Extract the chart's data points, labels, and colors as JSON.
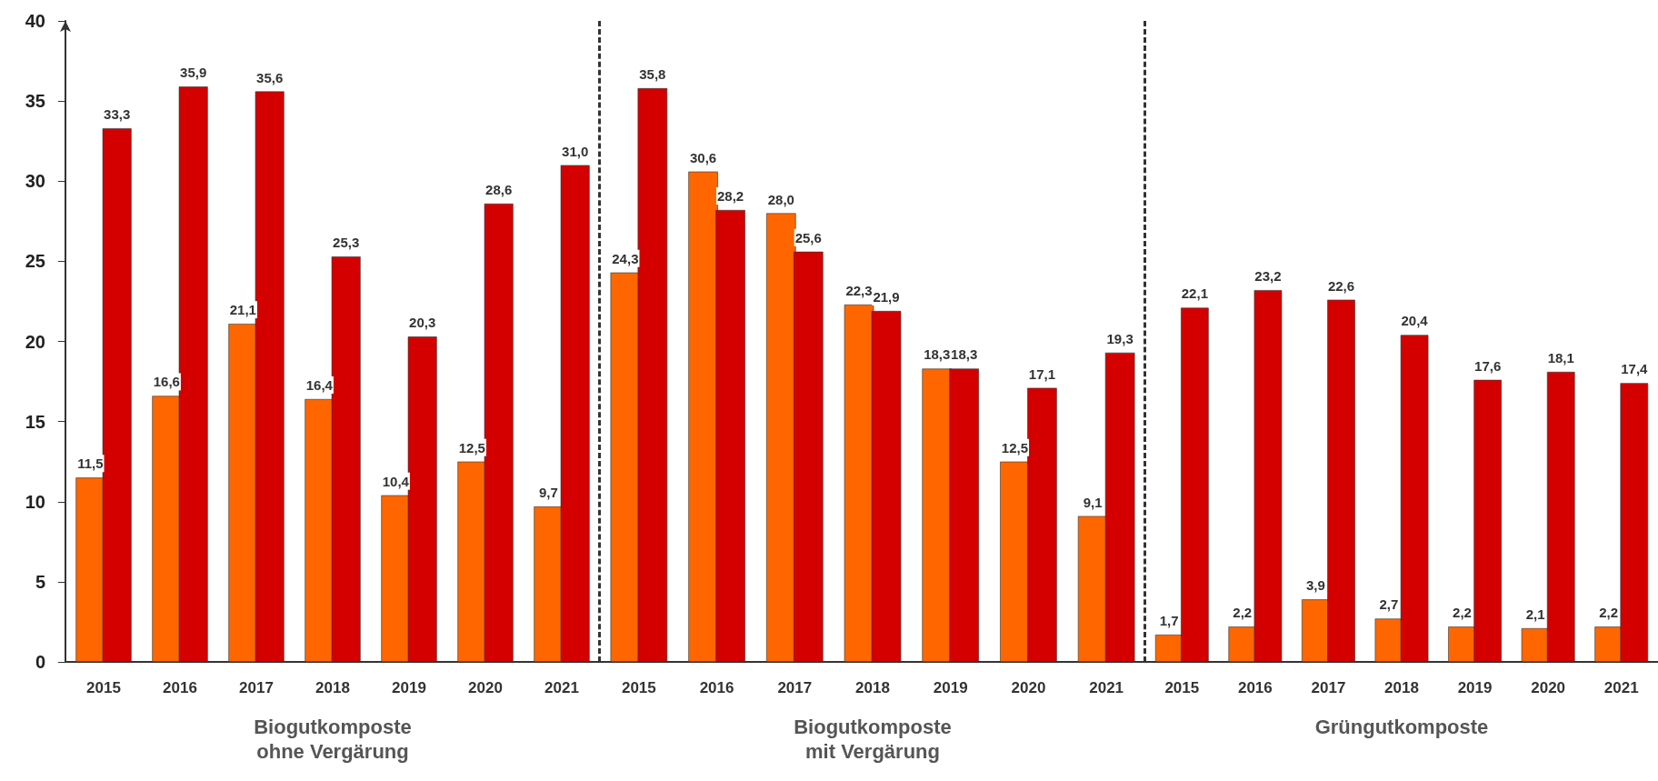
{
  "chart_data": [
    {
      "type": "bar",
      "categories": [
        "2015",
        "2016",
        "2017",
        "2018",
        "2019",
        "2020",
        "2021"
      ],
      "xlabel": "Biogutkomposte\nohne Vergärung",
      "ylim": [
        0,
        40
      ],
      "yticks": [
        0,
        5,
        10,
        15,
        20,
        25,
        30,
        35,
        40
      ],
      "series": [
        {
          "color": "#ff6600",
          "values": [
            11.5,
            16.6,
            21.1,
            16.4,
            10.4,
            12.5,
            9.7
          ],
          "value_labels": [
            "11,5",
            "16,6",
            "21,1",
            "16,4",
            "10,4",
            "12,5",
            "9,7"
          ]
        },
        {
          "color": "#d40000",
          "values": [
            33.3,
            35.9,
            35.6,
            25.3,
            20.3,
            28.6,
            31.0
          ],
          "value_labels": [
            "33,3",
            "35,9",
            "35,6",
            "25,3",
            "20,3",
            "28,6",
            "31,0"
          ]
        }
      ]
    },
    {
      "type": "bar",
      "categories": [
        "2015",
        "2016",
        "2017",
        "2018",
        "2019",
        "2020",
        "2021"
      ],
      "xlabel": "Biogutkomposte\nmit Vergärung",
      "ylim": [
        0,
        40
      ],
      "yticks": [
        0,
        5,
        10,
        15,
        20,
        25,
        30,
        35,
        40
      ],
      "tick_labels": "x",
      "series": [
        {
          "color": "#ff6600",
          "values": [
            24.3,
            30.6,
            28.0,
            22.3,
            18.3,
            12.5,
            9.1
          ],
          "value_labels": [
            "24,3",
            "30,6",
            "28,0",
            "22,3",
            "18,3",
            "12,5",
            "9,1"
          ]
        },
        {
          "color": "#d40000",
          "values": [
            35.8,
            28.2,
            25.6,
            21.9,
            18.3,
            17.1,
            19.3
          ],
          "value_labels": [
            "35,8",
            "28,2",
            "25,6",
            "21,9",
            "18,3",
            "17,1",
            "19,3"
          ]
        }
      ]
    },
    {
      "type": "bar",
      "categories": [
        "2015",
        "2016",
        "2017",
        "2018",
        "2019",
        "2020",
        "2021"
      ],
      "xlabel": "Grüngutkomposte",
      "ylim": [
        0,
        40
      ],
      "yticks": [
        0,
        5,
        10,
        15,
        20,
        25,
        30,
        35,
        40
      ],
      "tick_labels": "x",
      "series": [
        {
          "color": "#ff6600",
          "values": [
            1.7,
            2.2,
            3.9,
            2.7,
            2.2,
            2.1,
            2.2
          ],
          "value_labels": [
            "1,7",
            "2,2",
            "3,9",
            "2,7",
            "2,2",
            "2,1",
            "2,2"
          ]
        },
        {
          "color": "#d40000",
          "values": [
            22.1,
            23.2,
            22.6,
            20.4,
            17.6,
            18.1,
            17.4
          ],
          "value_labels": [
            "22,1",
            "23,2",
            "22,6",
            "20,4",
            "17,6",
            "18,1",
            "17,4"
          ]
        }
      ]
    }
  ]
}
